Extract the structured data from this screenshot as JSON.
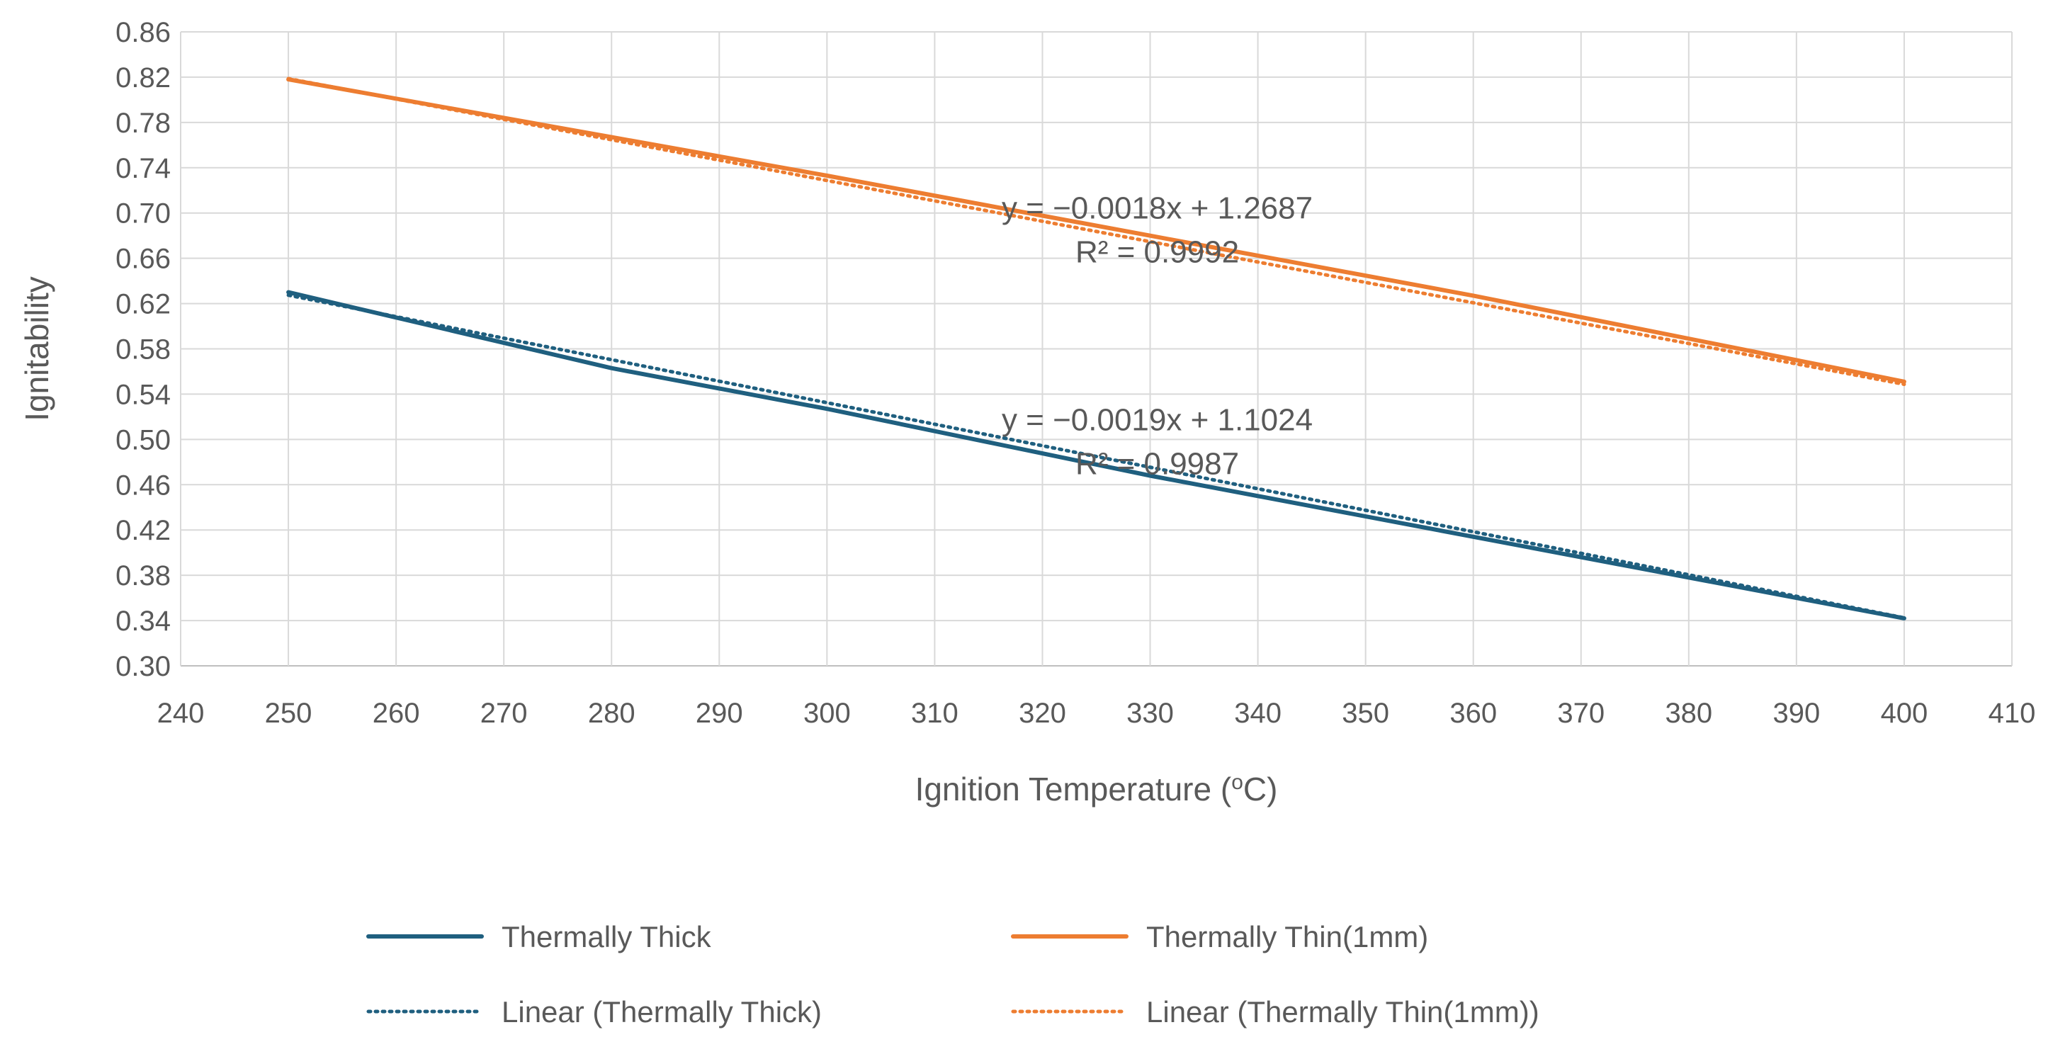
{
  "chart_data": {
    "type": "line",
    "title": "",
    "xlabel": "Ignition Temperature (",
    "xlabel_sup": "o",
    "xlabel_suffix": "C)",
    "ylabel": "Ignitability",
    "xlim": [
      240,
      410
    ],
    "xticks": [
      240,
      250,
      260,
      270,
      280,
      290,
      300,
      310,
      320,
      330,
      340,
      350,
      360,
      370,
      380,
      390,
      400,
      410
    ],
    "ylim": [
      0.3,
      0.86
    ],
    "yticks": [
      "0.30",
      "0.34",
      "0.38",
      "0.42",
      "0.46",
      "0.50",
      "0.54",
      "0.58",
      "0.62",
      "0.66",
      "0.70",
      "0.74",
      "0.78",
      "0.82",
      "0.86"
    ],
    "grid": true,
    "legend_position": "bottom",
    "series": [
      {
        "name": "Thermally Thick",
        "color": "#1f5f7f",
        "style": "solid",
        "x": [
          250,
          280,
          300,
          330,
          360,
          400
        ],
        "y": [
          0.63,
          0.563,
          0.527,
          0.468,
          0.414,
          0.342
        ]
      },
      {
        "name": "Thermally Thin(1mm)",
        "color": "#ed7d31",
        "style": "solid",
        "x": [
          250,
          280,
          300,
          330,
          360,
          400
        ],
        "y": [
          0.818,
          0.767,
          0.733,
          0.68,
          0.627,
          0.551
        ]
      },
      {
        "name": "Linear (Thermally Thick)",
        "color": "#1f5f7f",
        "style": "dotted",
        "trendline": {
          "slope": -0.0019,
          "intercept": 1.1024
        },
        "x": [
          250,
          400
        ]
      },
      {
        "name": "Linear (Thermally Thin(1mm))",
        "color": "#ed7d31",
        "style": "dotted",
        "trendline": {
          "slope": -0.0018,
          "intercept": 1.2687
        },
        "x": [
          250,
          400
        ]
      }
    ],
    "annotations": [
      {
        "equation": "y = −0.0018x + 1.2687",
        "r2": "R² = 0.9992",
        "anchor_x": 330,
        "anchor_y": 0.695
      },
      {
        "equation": "y = −0.0019x + 1.1024",
        "r2": "R² = 0.9987",
        "anchor_x": 330,
        "anchor_y": 0.508
      }
    ]
  }
}
